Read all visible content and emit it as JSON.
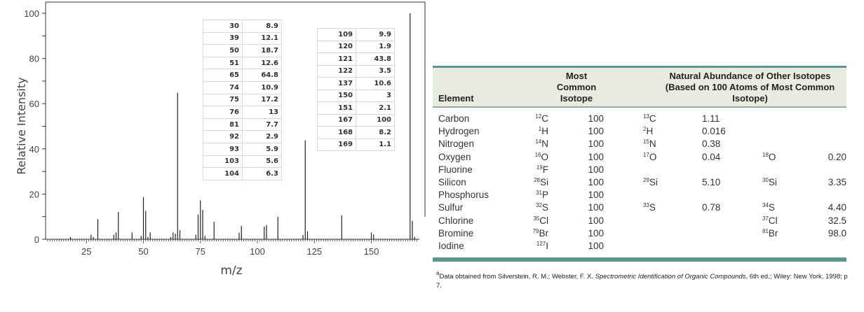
{
  "chart_data": {
    "type": "bar",
    "xlabel": "m/z",
    "ylabel": "Relative Intensity",
    "xlim": [
      8,
      170
    ],
    "ylim": [
      0,
      100
    ],
    "xticks": [
      25,
      50,
      75,
      100,
      125,
      150
    ],
    "yticks": [
      0,
      20,
      40,
      60,
      80,
      100
    ],
    "peaks": [
      [
        18,
        1
      ],
      [
        27,
        2
      ],
      [
        28,
        1
      ],
      [
        30,
        8.9
      ],
      [
        37,
        2
      ],
      [
        38,
        3
      ],
      [
        39,
        12.1
      ],
      [
        45,
        3
      ],
      [
        49,
        1.5
      ],
      [
        50,
        18.7
      ],
      [
        51,
        12.6
      ],
      [
        52,
        1
      ],
      [
        53,
        3
      ],
      [
        62,
        1
      ],
      [
        63,
        3
      ],
      [
        64,
        2.5
      ],
      [
        65,
        64.8
      ],
      [
        66,
        4
      ],
      [
        73,
        2
      ],
      [
        74,
        10.9
      ],
      [
        75,
        17.2
      ],
      [
        76,
        13
      ],
      [
        77,
        1.5
      ],
      [
        81,
        7.7
      ],
      [
        92,
        2.9
      ],
      [
        93,
        5.9
      ],
      [
        103,
        5.6
      ],
      [
        104,
        6.3
      ],
      [
        109,
        9.9
      ],
      [
        120,
        1.9
      ],
      [
        121,
        43.8
      ],
      [
        122,
        3.5
      ],
      [
        137,
        10.6
      ],
      [
        150,
        3
      ],
      [
        151,
        2.1
      ],
      [
        167,
        100
      ],
      [
        168,
        8.2
      ],
      [
        169,
        1.1
      ]
    ],
    "table1": [
      [
        "30",
        "8.9"
      ],
      [
        "39",
        "12.1"
      ],
      [
        "50",
        "18.7"
      ],
      [
        "51",
        "12.6"
      ],
      [
        "65",
        "64.8"
      ],
      [
        "74",
        "10.9"
      ],
      [
        "75",
        "17.2"
      ],
      [
        "76",
        "13"
      ],
      [
        "81",
        "7.7"
      ],
      [
        "92",
        "2.9"
      ],
      [
        "93",
        "5.9"
      ],
      [
        "103",
        "5.6"
      ],
      [
        "104",
        "6.3"
      ]
    ],
    "table2": [
      [
        "109",
        "9.9"
      ],
      [
        "120",
        "1.9"
      ],
      [
        "121",
        "43.8"
      ],
      [
        "122",
        "3.5"
      ],
      [
        "137",
        "10.6"
      ],
      [
        "150",
        "3"
      ],
      [
        "151",
        "2.1"
      ],
      [
        "167",
        "100"
      ],
      [
        "168",
        "8.2"
      ],
      [
        "169",
        "1.1"
      ]
    ]
  },
  "isotopes": {
    "headers": {
      "element": "Element",
      "most_common": "Most Common Isotope",
      "other": "Natural Abundance of Other Isotopes (Based on 100 Atoms of Most Common Isotope)"
    },
    "rows": [
      {
        "element": "Carbon",
        "m": "12",
        "s": "C",
        "a": "100",
        "m2": "13",
        "s2": "C",
        "a2": "1.11",
        "m3": "",
        "s3": "",
        "a3": ""
      },
      {
        "element": "Hydrogen",
        "m": "1",
        "s": "H",
        "a": "100",
        "m2": "2",
        "s2": "H",
        "a2": "0.016",
        "m3": "",
        "s3": "",
        "a3": ""
      },
      {
        "element": "Nitrogen",
        "m": "14",
        "s": "N",
        "a": "100",
        "m2": "15",
        "s2": "N",
        "a2": "0.38",
        "m3": "",
        "s3": "",
        "a3": ""
      },
      {
        "element": "Oxygen",
        "m": "16",
        "s": "O",
        "a": "100",
        "m2": "17",
        "s2": "O",
        "a2": "0.04",
        "m3": "18",
        "s3": "O",
        "a3": "0.20"
      },
      {
        "element": "Fluorine",
        "m": "19",
        "s": "F",
        "a": "100",
        "m2": "",
        "s2": "",
        "a2": "",
        "m3": "",
        "s3": "",
        "a3": ""
      },
      {
        "element": "Silicon",
        "m": "28",
        "s": "Si",
        "a": "100",
        "m2": "29",
        "s2": "Si",
        "a2": "5.10",
        "m3": "30",
        "s3": "Si",
        "a3": "3.35"
      },
      {
        "element": "Phosphorus",
        "m": "31",
        "s": "P",
        "a": "100",
        "m2": "",
        "s2": "",
        "a2": "",
        "m3": "",
        "s3": "",
        "a3": ""
      },
      {
        "element": "Sulfur",
        "m": "32",
        "s": "S",
        "a": "100",
        "m2": "33",
        "s2": "S",
        "a2": "0.78",
        "m3": "34",
        "s3": "S",
        "a3": "4.40"
      },
      {
        "element": "Chlorine",
        "m": "35",
        "s": "Cl",
        "a": "100",
        "m2": "",
        "s2": "",
        "a2": "",
        "m3": "37",
        "s3": "Cl",
        "a3": "32.5"
      },
      {
        "element": "Bromine",
        "m": "79",
        "s": "Br",
        "a": "100",
        "m2": "",
        "s2": "",
        "a2": "",
        "m3": "81",
        "s3": "Br",
        "a3": "98.0"
      },
      {
        "element": "Iodine",
        "m": "127",
        "s": "I",
        "a": "100",
        "m2": "",
        "s2": "",
        "a2": "",
        "m3": "",
        "s3": "",
        "a3": ""
      }
    ],
    "footnote_mark": "a",
    "footnote_pre": "Data obtained from Silverstein, R. M.; Webster, F. X. ",
    "footnote_title": "Spectrometric Identification of Organic Compounds",
    "footnote_post": ", 6th ed.; Wiley: New York, 1998; p 7."
  },
  "colors": {
    "accent": "#5d9692",
    "header_bg": "#e7ecdf"
  }
}
